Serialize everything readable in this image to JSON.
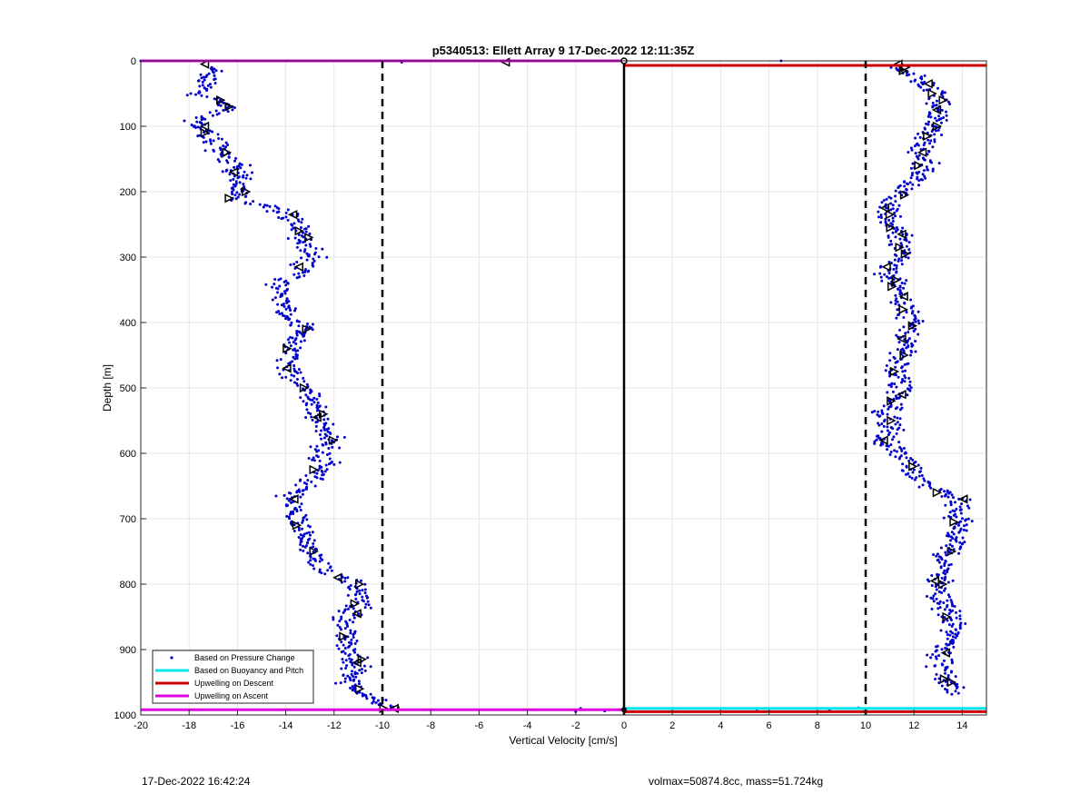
{
  "chart_data": {
    "type": "scatter",
    "title": "p5340513: Ellett Array 9 17-Dec-2022 12:11:35Z",
    "xlabel": "Vertical Velocity [cm/s]",
    "ylabel": "Depth [m]",
    "xlim": [
      -20,
      15
    ],
    "ylim": [
      0,
      1000
    ],
    "y_reversed": true,
    "grid": true,
    "xticks": [
      -20,
      -18,
      -16,
      -14,
      -12,
      -10,
      -8,
      -6,
      -4,
      -2,
      0,
      2,
      4,
      6,
      8,
      10,
      12,
      14
    ],
    "yticks": [
      0,
      100,
      200,
      300,
      400,
      500,
      600,
      700,
      800,
      900,
      1000
    ],
    "legend_position": "bottom-left",
    "legend": [
      {
        "label": "Based on Pressure Change",
        "style": "dot",
        "color": "#0000cc"
      },
      {
        "label": "Based on Buoyancy and Pitch",
        "style": "line",
        "color": "#00e5ee"
      },
      {
        "label": "Upwelling on Descent",
        "style": "line",
        "color": "#cc0000"
      },
      {
        "label": "Upwelling on Ascent",
        "style": "line",
        "color": "#e000e0"
      }
    ],
    "reference_lines": {
      "dashed_x": [
        -10,
        10
      ],
      "solid_x": [
        0
      ]
    },
    "series": [
      {
        "name": "Based on Pressure Change",
        "branch": "ascent",
        "depth": [
          10,
          30,
          50,
          70,
          90,
          110,
          140,
          170,
          200,
          210,
          230,
          250,
          270,
          300,
          320,
          350,
          380,
          410,
          440,
          470,
          500,
          540,
          580,
          620,
          650,
          670,
          700,
          730,
          760,
          780,
          800,
          830,
          860,
          890,
          920,
          950,
          975,
          990
        ],
        "velocity": [
          -17.2,
          -17.3,
          -17.5,
          -16.2,
          -17.8,
          -17.2,
          -16.6,
          -16.0,
          -15.8,
          -16.2,
          -14.0,
          -13.4,
          -13.2,
          -13.0,
          -13.4,
          -14.3,
          -14.2,
          -13.3,
          -13.8,
          -14.1,
          -13.1,
          -12.6,
          -12.2,
          -12.6,
          -13.2,
          -13.8,
          -13.5,
          -13.2,
          -12.9,
          -12.3,
          -11.1,
          -11.0,
          -11.4,
          -11.5,
          -10.9,
          -11.5,
          -10.5,
          -9.8
        ]
      },
      {
        "name": "Based on Pressure Change",
        "branch": "descent",
        "depth": [
          10,
          30,
          50,
          70,
          90,
          110,
          140,
          170,
          200,
          220,
          240,
          260,
          290,
          320,
          350,
          380,
          410,
          440,
          470,
          500,
          540,
          580,
          620,
          650,
          670,
          700,
          730,
          760,
          790,
          820,
          850,
          880,
          910,
          940,
          970
        ],
        "velocity": [
          11.5,
          12.3,
          12.9,
          13.2,
          12.8,
          12.8,
          12.2,
          12.4,
          11.6,
          11.0,
          10.8,
          11.3,
          11.6,
          10.9,
          11.3,
          11.7,
          11.8,
          11.5,
          11.3,
          11.5,
          10.9,
          10.9,
          11.8,
          12.3,
          13.9,
          13.8,
          13.8,
          13.2,
          13.0,
          13.1,
          13.5,
          13.5,
          13.1,
          13.4,
          13.4
        ]
      }
    ],
    "markers": [
      {
        "series": "ascent",
        "depth": [
          5,
          60,
          70,
          100,
          110,
          140,
          170,
          200,
          210,
          235,
          260,
          270,
          315,
          410,
          440,
          470,
          500,
          540,
          545,
          580,
          625,
          670,
          710,
          750,
          790,
          800,
          830,
          845,
          880,
          915,
          920,
          960,
          990
        ]
      },
      {
        "series": "descent",
        "depth": [
          5,
          10,
          15,
          35,
          50,
          60,
          75,
          100,
          115,
          140,
          160,
          205,
          225,
          235,
          255,
          265,
          285,
          295,
          315,
          335,
          345,
          360,
          380,
          405,
          425,
          450,
          475,
          510,
          520,
          550,
          580,
          620,
          660,
          670,
          705,
          750,
          795,
          800,
          850,
          905,
          945,
          950
        ]
      }
    ],
    "horizontal_lines": [
      {
        "name": "Upwelling on Ascent",
        "depth": 0,
        "x_from": -20,
        "x_to": 0,
        "color": "#e000e0"
      },
      {
        "name": "Upwelling on Descent",
        "depth": 7,
        "x_from": 0,
        "x_to": 15,
        "color": "#cc0000"
      },
      {
        "name": "Based on Buoyancy and Pitch",
        "depth": 990,
        "x_from": 0,
        "x_to": 15,
        "color": "#00e5ee"
      },
      {
        "name": "Upwelling on Ascent",
        "depth": 992,
        "x_from": -20,
        "x_to": 0,
        "color": "#e000e0"
      },
      {
        "name": "Upwelling on Descent",
        "depth": 995,
        "x_from": 0,
        "x_to": 15,
        "color": "#cc0000"
      }
    ]
  },
  "footer": {
    "timestamp": "17-Dec-2022 16:42:24",
    "params": "volmax=50874.8cc, mass=51.724kg"
  }
}
